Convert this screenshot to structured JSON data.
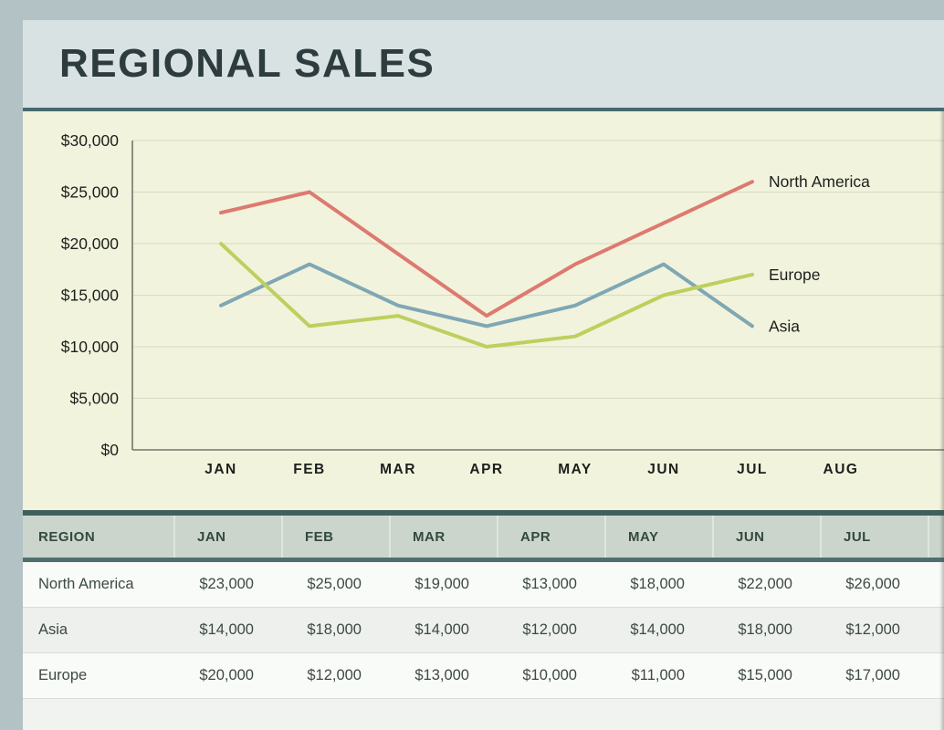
{
  "page_title": "REGIONAL SALES",
  "colors": {
    "outer_bg": "#b3c2c5",
    "title_panel_bg": "#d9e2e3",
    "title_text": "#2d3c3e",
    "divider_teal": "#476a6d",
    "chart_bg": "#f2f3dd",
    "gridline": "#d8dac2",
    "axis": "#72756a",
    "chart_text": "#1c201c",
    "table_header_bg": "#cbd5cc",
    "table_header_text": "#33493f",
    "series_north_america": "#dd7a70",
    "series_asia": "#7fa7b4",
    "series_europe": "#bdd05e"
  },
  "chart_data": {
    "type": "line",
    "title": "",
    "xlabel": "",
    "ylabel": "",
    "grid": true,
    "legend_position": "line-end-labels",
    "categories": [
      "JAN",
      "FEB",
      "MAR",
      "APR",
      "MAY",
      "JUN",
      "JUL",
      "AUG"
    ],
    "ylim": [
      0,
      30000
    ],
    "yticks": [
      {
        "value": 0,
        "label": "$0"
      },
      {
        "value": 5000,
        "label": "$5,000"
      },
      {
        "value": 10000,
        "label": "$10,000"
      },
      {
        "value": 15000,
        "label": "$15,000"
      },
      {
        "value": 20000,
        "label": "$20,000"
      },
      {
        "value": 25000,
        "label": "$25,000"
      },
      {
        "value": 30000,
        "label": "$30,000"
      }
    ],
    "series": [
      {
        "name": "North America",
        "color": "#dd7a70",
        "values": [
          23000,
          25000,
          19000,
          13000,
          18000,
          22000,
          26000
        ]
      },
      {
        "name": "Asia",
        "color": "#7fa7b4",
        "values": [
          14000,
          18000,
          14000,
          12000,
          14000,
          18000,
          12000
        ]
      },
      {
        "name": "Europe",
        "color": "#bdd05e",
        "values": [
          20000,
          12000,
          13000,
          10000,
          11000,
          15000,
          17000
        ]
      }
    ]
  },
  "table": {
    "columns": [
      "REGION",
      "JAN",
      "FEB",
      "MAR",
      "APR",
      "MAY",
      "JUN",
      "JUL"
    ],
    "rows": [
      {
        "region": "North America",
        "values": [
          "$23,000",
          "$25,000",
          "$19,000",
          "$13,000",
          "$18,000",
          "$22,000",
          "$26,000"
        ]
      },
      {
        "region": "Asia",
        "values": [
          "$14,000",
          "$18,000",
          "$14,000",
          "$12,000",
          "$14,000",
          "$18,000",
          "$12,000"
        ]
      },
      {
        "region": "Europe",
        "values": [
          "$20,000",
          "$12,000",
          "$13,000",
          "$10,000",
          "$11,000",
          "$15,000",
          "$17,000"
        ]
      }
    ]
  }
}
